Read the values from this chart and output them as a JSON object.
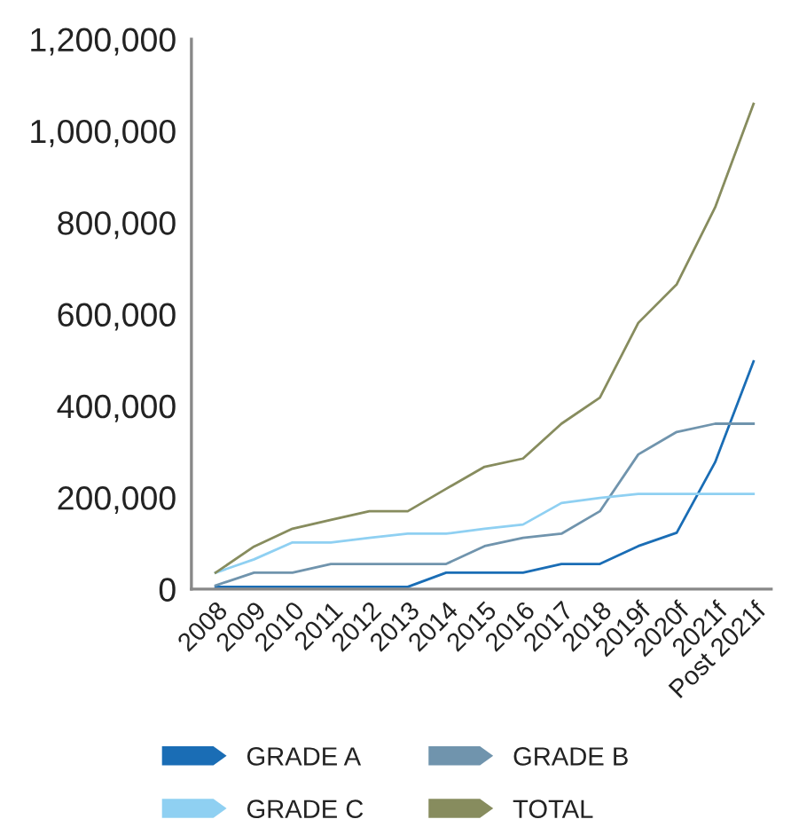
{
  "chart_data": {
    "type": "line",
    "categories": [
      "2008",
      "2009",
      "2010",
      "2011",
      "2012",
      "2013",
      "2014",
      "2015",
      "2016",
      "2017",
      "2018",
      "2019f",
      "2020f",
      "2021f",
      "Post 2021f"
    ],
    "series": [
      {
        "name": "GRADE A",
        "color": "#1a6db5",
        "values": [
          5000,
          5000,
          5000,
          5000,
          5000,
          5000,
          36000,
          36000,
          36000,
          55000,
          55000,
          94000,
          123000,
          277000,
          497000
        ]
      },
      {
        "name": "GRADE B",
        "color": "#7094ad",
        "values": [
          8000,
          36000,
          36000,
          55000,
          55000,
          55000,
          55000,
          94000,
          112000,
          121000,
          170000,
          294000,
          343000,
          361000,
          361000
        ]
      },
      {
        "name": "GRADE C",
        "color": "#8fd0f2",
        "values": [
          36000,
          65000,
          102000,
          102000,
          112000,
          121000,
          121000,
          132000,
          141000,
          188000,
          199000,
          208000,
          208000,
          208000,
          208000
        ]
      },
      {
        "name": "TOTAL",
        "color": "#878c5e",
        "values": [
          36000,
          93000,
          132000,
          151000,
          170000,
          170000,
          219000,
          267000,
          285000,
          361000,
          418000,
          581000,
          665000,
          833000,
          1059000
        ]
      }
    ],
    "ylim": [
      0,
      1200000
    ],
    "yticks": [
      {
        "value": 0,
        "label": "0"
      },
      {
        "value": 200000,
        "label": "200,000"
      },
      {
        "value": 400000,
        "label": "400,000"
      },
      {
        "value": 600000,
        "label": "600,000"
      },
      {
        "value": 800000,
        "label": "800,000"
      },
      {
        "value": 1000000,
        "label": "1,000,000"
      },
      {
        "value": 1200000,
        "label": "1,200,000"
      }
    ],
    "grid": false,
    "legend": "bottom",
    "marker": "none",
    "line_style": "solid"
  }
}
